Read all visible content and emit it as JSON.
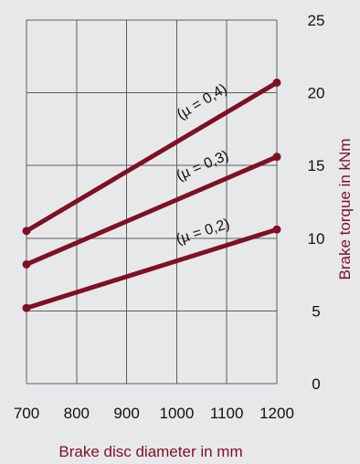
{
  "chart_data": {
    "type": "line",
    "xlabel": "Brake disc diameter in mm",
    "ylabel": "Brake torque in kNm",
    "x_ticks": [
      "700",
      "800",
      "900",
      "1000",
      "1100",
      "1200"
    ],
    "y_ticks": [
      "0",
      "5",
      "10",
      "15",
      "20",
      "25"
    ],
    "xlim": [
      700,
      1200
    ],
    "ylim": [
      0,
      25
    ],
    "grid": true,
    "series": [
      {
        "name": "(µ = 0,4)",
        "x": [
          700,
          1200
        ],
        "y": [
          10.5,
          20.7
        ],
        "color": "#7f1024"
      },
      {
        "name": "(µ = 0,3)",
        "x": [
          700,
          1200
        ],
        "y": [
          8.2,
          15.6
        ],
        "color": "#7f1024"
      },
      {
        "name": "(µ = 0,2)",
        "x": [
          700,
          1200
        ],
        "y": [
          5.2,
          10.6
        ],
        "color": "#7f1024"
      }
    ]
  }
}
